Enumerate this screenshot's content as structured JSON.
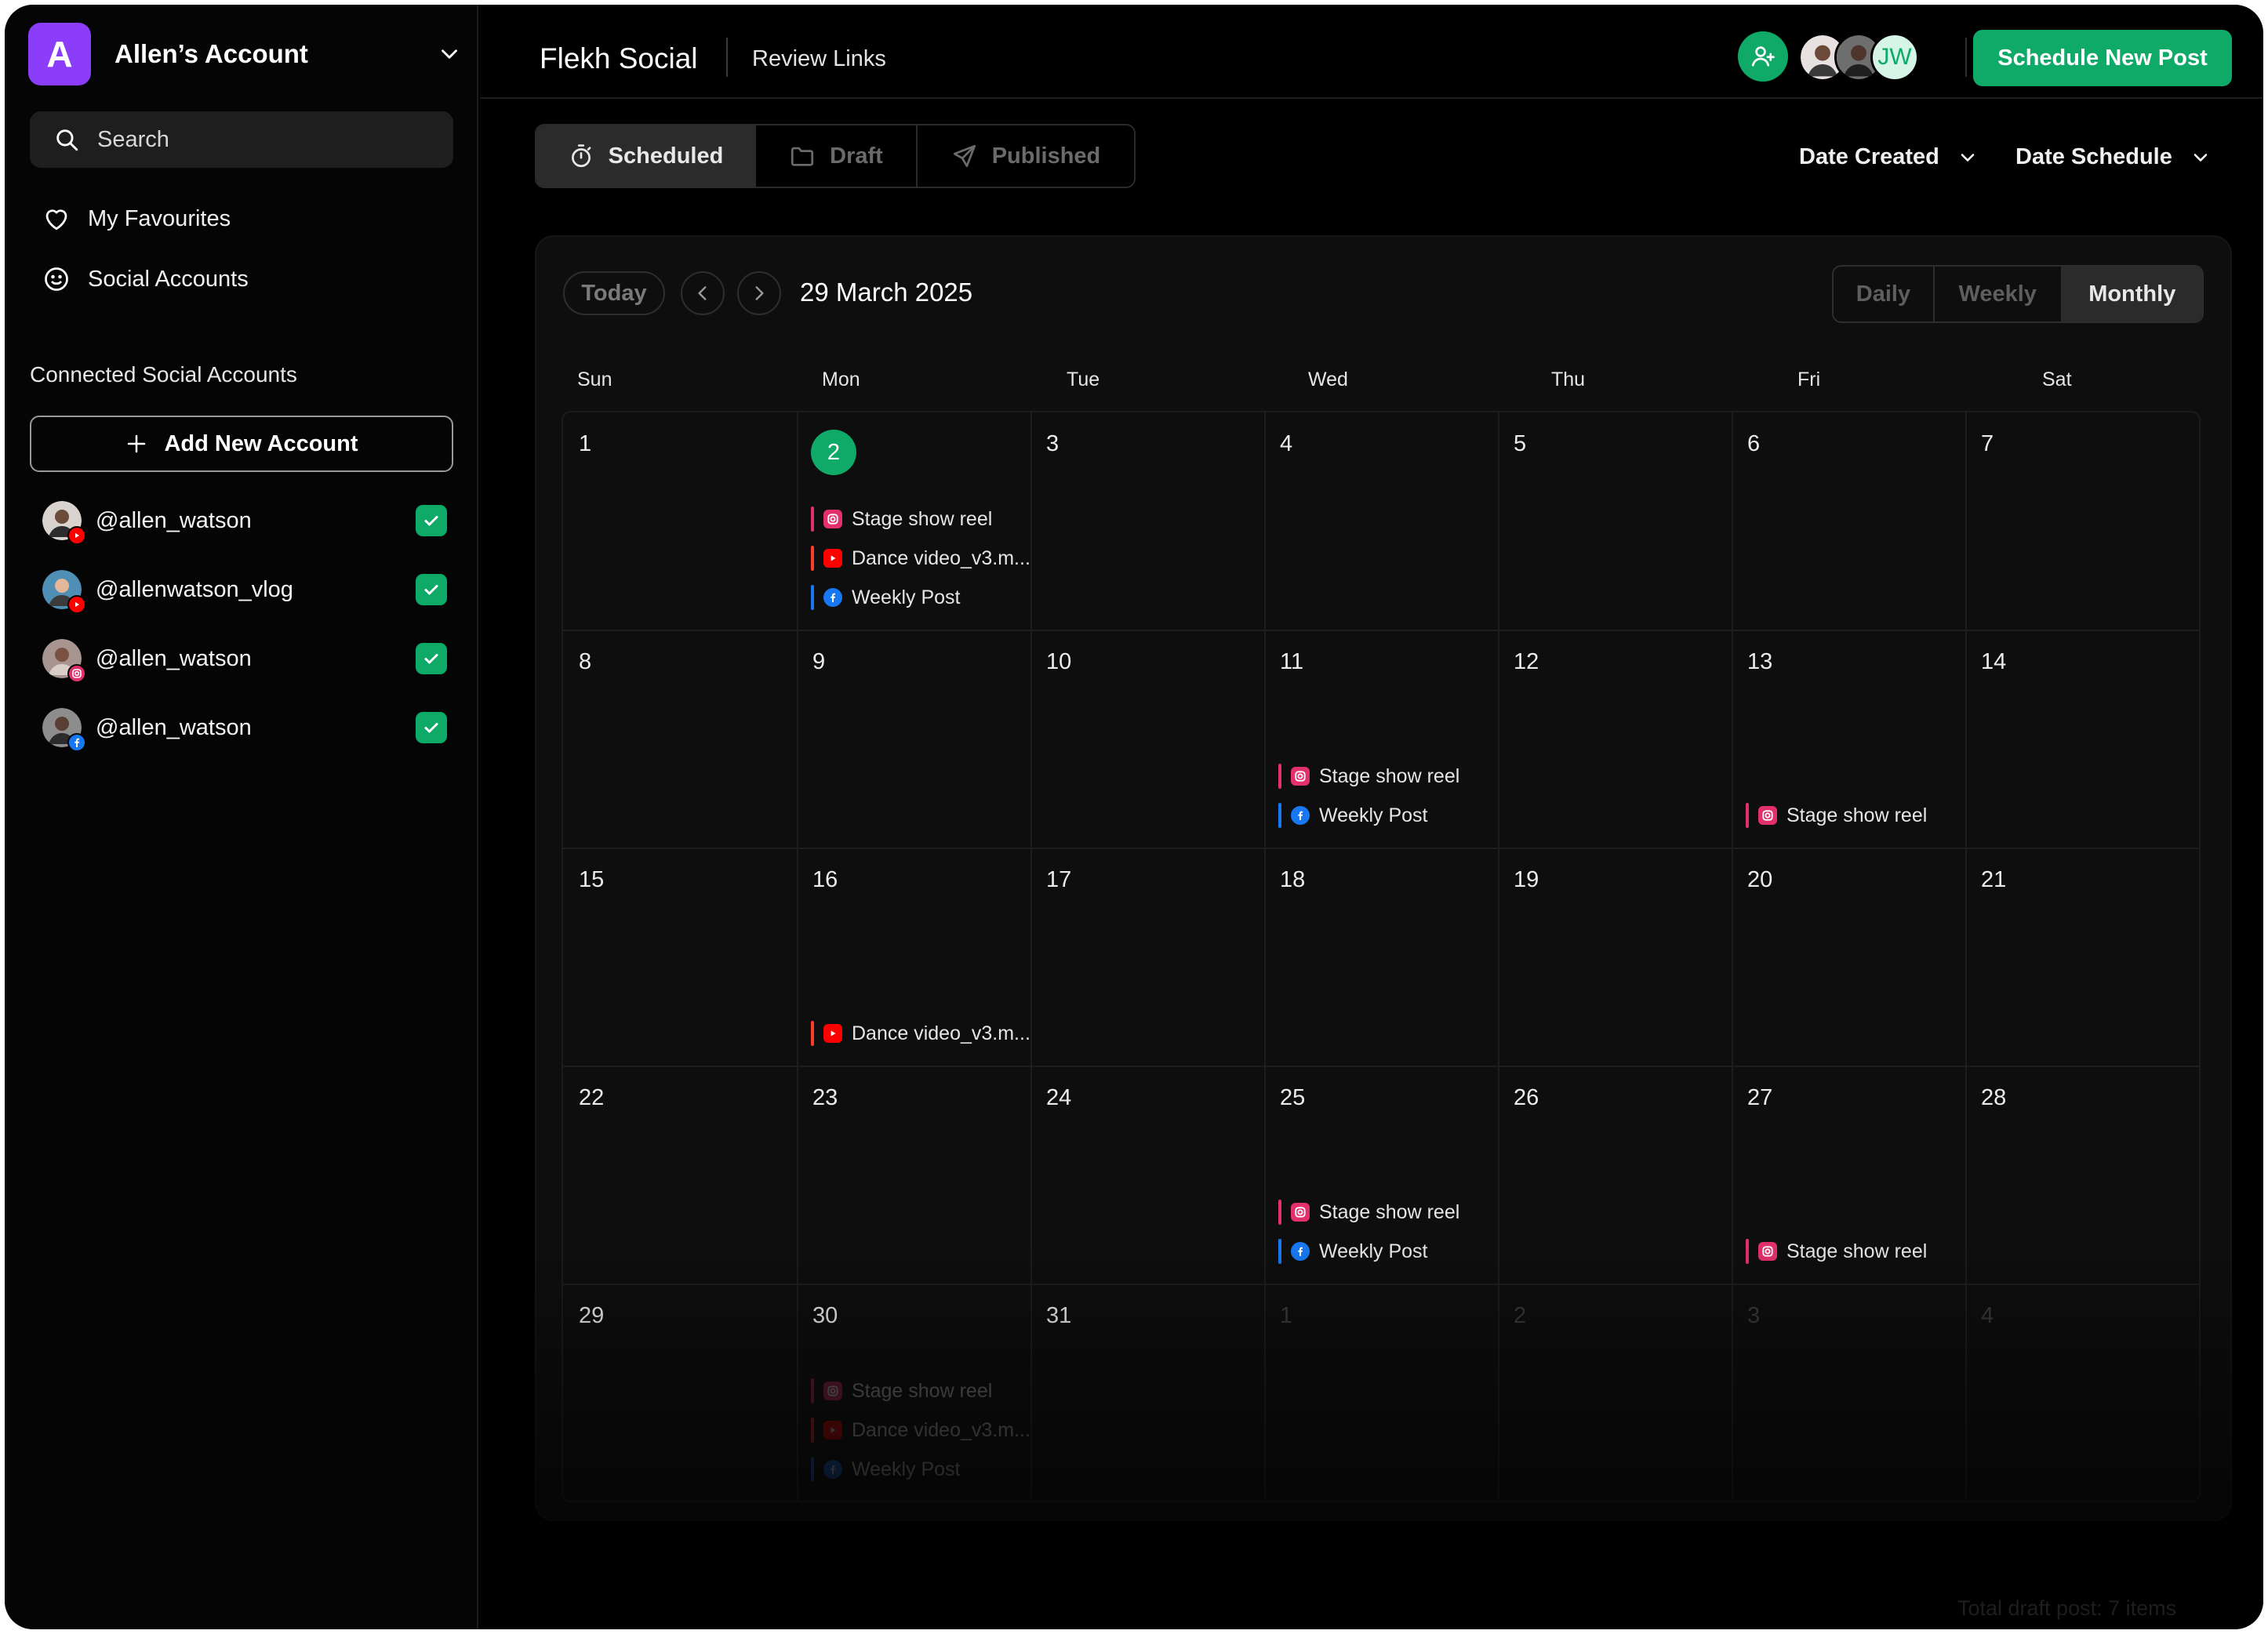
{
  "account": {
    "initial": "A",
    "name": "Allen’s Account",
    "logo_color": "#8c3dfa"
  },
  "search": {
    "placeholder": "Search"
  },
  "nav": {
    "favourites": "My Favourites",
    "social_accounts": "Social Accounts"
  },
  "connected": {
    "section_label": "Connected Social Accounts",
    "add_label": "Add New Account",
    "accounts": [
      {
        "handle": "@allen_watson",
        "platform": "youtube",
        "checked": true
      },
      {
        "handle": "@allenwatson_vlog",
        "platform": "youtube",
        "checked": true
      },
      {
        "handle": "@allen_watson",
        "platform": "instagram",
        "checked": true
      },
      {
        "handle": "@allen_watson",
        "platform": "facebook",
        "checked": true
      }
    ]
  },
  "topbar": {
    "app_title": "Flekh Social",
    "review_links": "Review Links",
    "collaborator_initials": "JW",
    "schedule_button": "Schedule New Post"
  },
  "tabs": {
    "scheduled": "Scheduled",
    "draft": "Draft",
    "published": "Published",
    "active": "Scheduled"
  },
  "filters": {
    "date_created": "Date Created",
    "date_schedule": "Date Schedule"
  },
  "calendar": {
    "today_label": "Today",
    "current_date": "29 March 2025",
    "views": {
      "daily": "Daily",
      "weekly": "Weekly",
      "monthly": "Monthly",
      "active": "Monthly"
    },
    "weekdays": [
      "Sun",
      "Mon",
      "Tue",
      "Wed",
      "Thu",
      "Fri",
      "Sat"
    ],
    "highlighted_day": "2",
    "weeks": [
      [
        "1",
        "2",
        "3",
        "4",
        "5",
        "6",
        "7"
      ],
      [
        "8",
        "9",
        "10",
        "11",
        "12",
        "13",
        "14"
      ],
      [
        "15",
        "16",
        "17",
        "18",
        "19",
        "20",
        "21"
      ],
      [
        "22",
        "23",
        "24",
        "25",
        "26",
        "27",
        "28"
      ],
      [
        "29",
        "30",
        "31",
        "1",
        "2",
        "3",
        "4"
      ]
    ],
    "posts": {
      "stage": "Stage show reel",
      "dance": "Dance video_v3.m...",
      "weekly": "Weekly Post"
    }
  },
  "colors": {
    "accent_green": "#0fa968",
    "instagram": "#e1306c",
    "youtube": "#ff0000",
    "facebook": "#1877f2"
  },
  "footer_note": "Total draft post: 7 items"
}
